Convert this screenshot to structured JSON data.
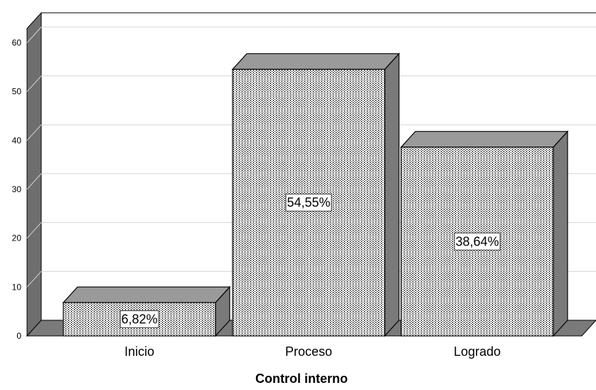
{
  "chart_data": {
    "type": "bar",
    "style": "3d",
    "categories": [
      "Inicio",
      "Proceso",
      "Logrado"
    ],
    "values": [
      6.82,
      54.55,
      38.64
    ],
    "data_labels": [
      "6,82%",
      "54,55%",
      "38,64%"
    ],
    "xlabel": "Control interno",
    "ylabel": "",
    "ylim": [
      0,
      60
    ],
    "yticks": [
      "0",
      "10",
      "20",
      "30",
      "40",
      "50",
      "60"
    ],
    "grid": true,
    "colors": {
      "bar_front": "#ffffff",
      "bar_pattern": "#000000",
      "bar_side": "#7a7a7a",
      "bar_top": "#9a9a9a",
      "wall_side": "#6e6e6e",
      "floor": "#7a7a7a",
      "gridline": "#d4d4d4",
      "border": "#000000"
    }
  }
}
